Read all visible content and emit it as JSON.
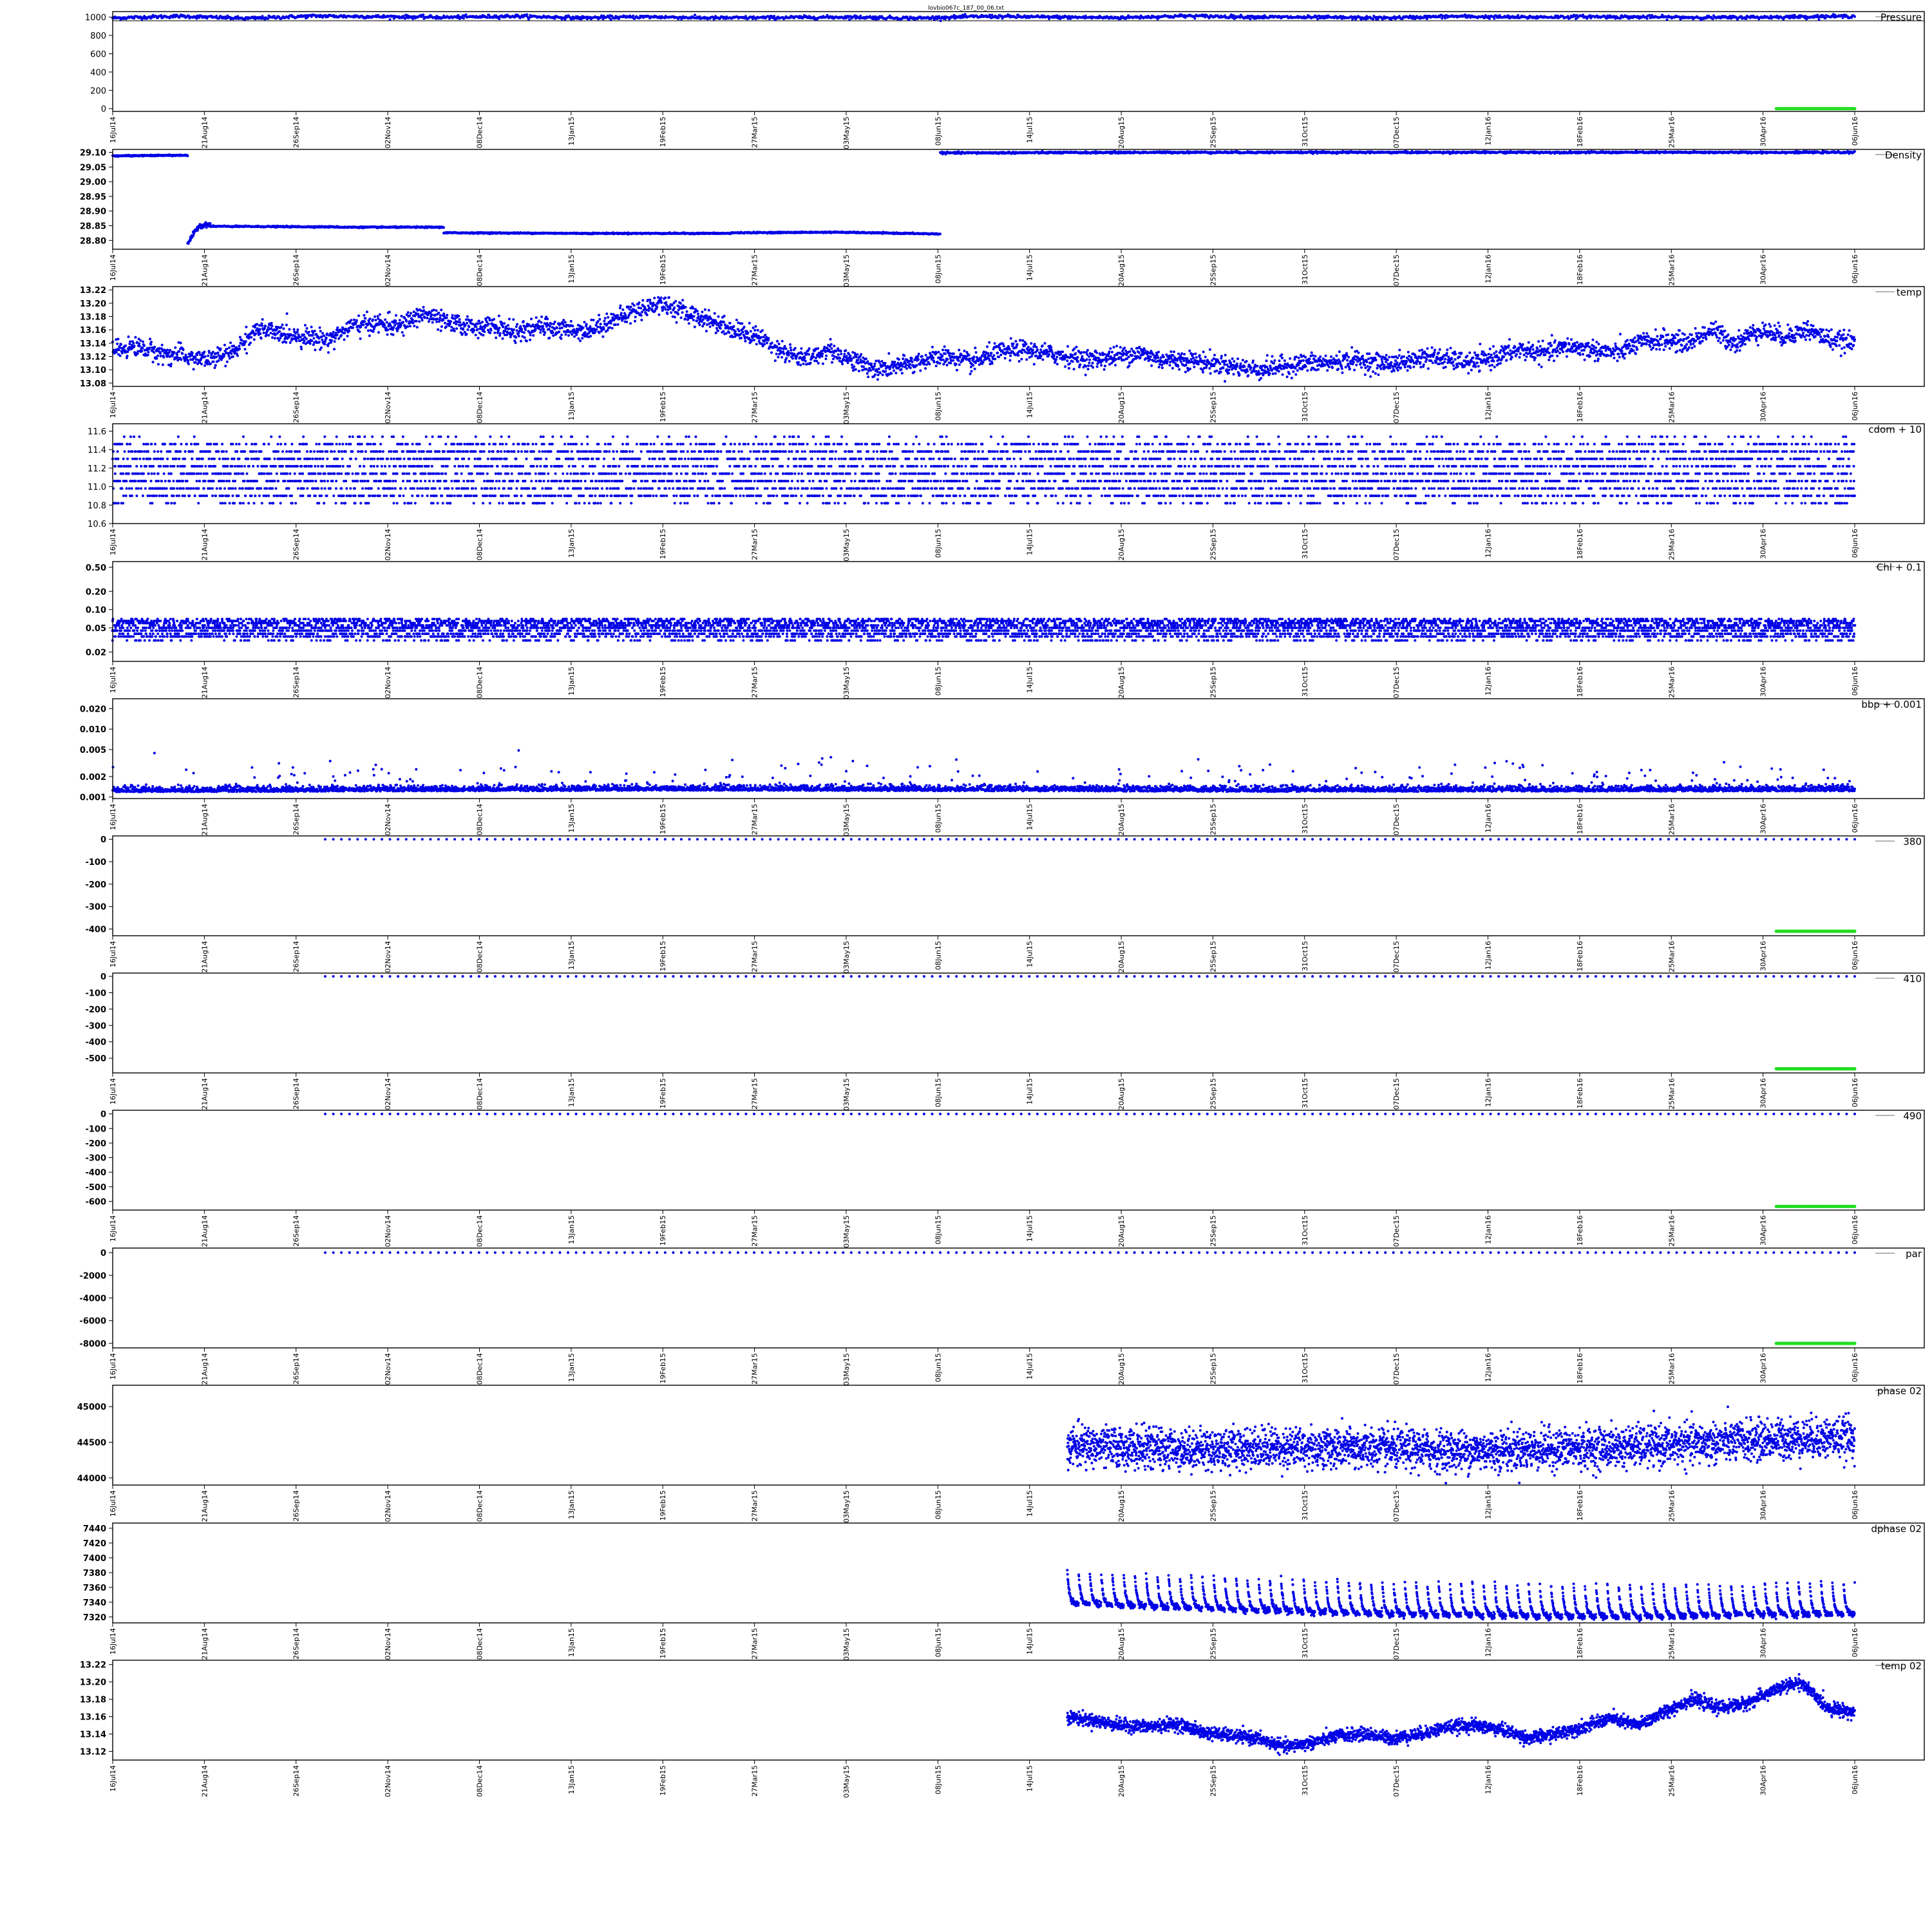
{
  "title": "lovbio067c_187_00_06.txt",
  "colors": {
    "points": "#0000e6",
    "flagged": "#22dd22",
    "frame": "#000000",
    "legend_line": "#888888"
  },
  "chart_data": [
    {
      "type": "scatter",
      "label": "Pressure",
      "ylim": [
        -30,
        1060
      ],
      "yticks": [
        1000,
        800,
        600,
        400,
        200,
        0
      ],
      "tick_labels": [
        "1000",
        "800",
        "600",
        "400",
        "200",
        "0"
      ],
      "ref_line": 960,
      "series": [
        {
          "role": "main",
          "start": 0,
          "end": 1.0,
          "values": [
            990,
            1010,
            985,
            1012,
            1005,
            998,
            1010,
            992,
            1003,
            990,
            995,
            1000,
            988,
            1008,
            1000,
            994,
            1012,
            1002,
            996,
            990,
            1008,
            998,
            1005,
            1000,
            995,
            1002,
            1010
          ],
          "noise": 15,
          "n": 2200,
          "shape": "band"
        },
        {
          "role": "flag",
          "start": 0.955,
          "end": 1.0,
          "values": [
            0,
            0
          ],
          "noise": 0,
          "n": 80,
          "shape": "line"
        }
      ]
    },
    {
      "type": "scatter",
      "label": "Density",
      "ylim": [
        28.77,
        29.11
      ],
      "yticks": [
        29.1,
        29.05,
        29.0,
        28.95,
        28.9,
        28.85,
        28.8
      ],
      "tick_labels": [
        "29.10",
        "29.05",
        "29.00",
        "28.95",
        "28.90",
        "28.85",
        "28.80"
      ],
      "series": [
        {
          "role": "main",
          "start": 0.0,
          "end": 0.043,
          "values": [
            29.088,
            29.09
          ],
          "noise": 0.001,
          "n": 220,
          "shape": "line"
        },
        {
          "role": "main",
          "start": 0.043,
          "end": 0.056,
          "values": [
            28.79,
            28.85,
            28.855
          ],
          "noise": 0.006,
          "n": 80,
          "shape": "band"
        },
        {
          "role": "main",
          "start": 0.056,
          "end": 0.13,
          "values": [
            28.848,
            28.846
          ],
          "noise": 0.001,
          "n": 320,
          "shape": "line"
        },
        {
          "role": "main",
          "start": 0.13,
          "end": 0.19,
          "values": [
            28.845,
            28.845
          ],
          "noise": 0.001,
          "n": 260,
          "shape": "line"
        },
        {
          "role": "main",
          "start": 0.19,
          "end": 0.355,
          "values": [
            28.826,
            28.824,
            28.824
          ],
          "noise": 0.001,
          "n": 700,
          "shape": "line"
        },
        {
          "role": "main",
          "start": 0.355,
          "end": 0.475,
          "values": [
            28.826,
            28.828,
            28.822
          ],
          "noise": 0.001,
          "n": 500,
          "shape": "line"
        },
        {
          "role": "main",
          "start": 0.475,
          "end": 1.0,
          "values": [
            29.098,
            29.1,
            29.1,
            29.1,
            29.1
          ],
          "noise": 0.0015,
          "n": 1800,
          "shape": "line"
        }
      ]
    },
    {
      "type": "scatter",
      "label": "temp",
      "ylim": [
        13.075,
        13.225
      ],
      "yticks": [
        13.22,
        13.2,
        13.18,
        13.16,
        13.14,
        13.12,
        13.1,
        13.08
      ],
      "tick_labels": [
        "13.22",
        "13.20",
        "13.18",
        "13.16",
        "13.14",
        "13.12",
        "13.10",
        "13.08"
      ],
      "series": [
        {
          "role": "main",
          "start": 0,
          "end": 1.0,
          "values": [
            13.13,
            13.135,
            13.125,
            13.12,
            13.115,
            13.125,
            13.16,
            13.155,
            13.15,
            13.145,
            13.165,
            13.17,
            13.165,
            13.185,
            13.17,
            13.165,
            13.165,
            13.155,
            13.165,
            13.16,
            13.16,
            13.175,
            13.19,
            13.2,
            13.185,
            13.175,
            13.16,
            13.15,
            13.13,
            13.115,
            13.13,
            13.115,
            13.1,
            13.105,
            13.115,
            13.12,
            13.11,
            13.125,
            13.13,
            13.125,
            13.12,
            13.115,
            13.12,
            13.125,
            13.115,
            13.115,
            13.11,
            13.105,
            13.1,
            13.105,
            13.11,
            13.11,
            13.115,
            13.11,
            13.11,
            13.12,
            13.115,
            13.11,
            13.12,
            13.13,
            13.125,
            13.135,
            13.13,
            13.125,
            13.14,
            13.145,
            13.14,
            13.16,
            13.14,
            13.16,
            13.15,
            13.16,
            13.145,
            13.14
          ],
          "noise": 0.012,
          "n": 4200,
          "shape": "band"
        }
      ]
    },
    {
      "type": "scatter",
      "label": "cdom + 10",
      "ylim": [
        10.6,
        11.68
      ],
      "yticks": [
        11.6,
        11.4,
        11.2,
        11.0,
        10.8,
        10.6
      ],
      "tick_labels": [
        "11.6",
        "11.4",
        "11.2",
        "11.0",
        "10.8",
        "10.6"
      ],
      "series": [
        {
          "role": "main",
          "start": 0,
          "end": 1.0,
          "levels": [
            10.82,
            10.9,
            10.98,
            11.06,
            11.14,
            11.22,
            11.3,
            11.38,
            11.46,
            11.54
          ],
          "weights": [
            0.3,
            1,
            1,
            1,
            1,
            1,
            1,
            1,
            0.7,
            0.15
          ],
          "n": 7000,
          "shape": "levels"
        }
      ]
    },
    {
      "type": "scatter",
      "label": "Chl + 0.1",
      "ylim": [
        0.014,
        0.62
      ],
      "log": true,
      "yticks": [
        0.5,
        0.2,
        0.1,
        0.05,
        0.02
      ],
      "tick_labels": [
        "0.50",
        "0.20",
        "0.10",
        "0.05",
        "0.02"
      ],
      "series": [
        {
          "role": "main",
          "start": 0,
          "end": 1.0,
          "levels": [
            0.031,
            0.036,
            0.04,
            0.045,
            0.05,
            0.055,
            0.06,
            0.065,
            0.07
          ],
          "weights": [
            0.4,
            1,
            1,
            1,
            1,
            1,
            1,
            1,
            0.6
          ],
          "n": 7000,
          "shape": "levels"
        }
      ]
    },
    {
      "type": "scatter",
      "label": "bbp + 0.001",
      "ylim": [
        0.00095,
        0.028
      ],
      "log": true,
      "yticks": [
        0.02,
        0.01,
        0.005,
        0.002,
        0.001
      ],
      "tick_labels": [
        "0.020",
        "0.010",
        "0.005",
        "0.002",
        "0.001"
      ],
      "series": [
        {
          "role": "main",
          "start": 0,
          "end": 1.0,
          "values": [
            0.00118,
            0.00125,
            0.0012,
            0.00122
          ],
          "noise": 0.00012,
          "n": 5000,
          "shape": "skew"
        }
      ]
    },
    {
      "type": "scatter",
      "label": "380",
      "ylim": [
        -430,
        15
      ],
      "yticks": [
        0,
        -100,
        -200,
        -300,
        -400
      ],
      "tick_labels": [
        "0",
        "-100",
        "-200",
        "-300",
        "-400"
      ],
      "series": [
        {
          "role": "main",
          "start": 0.122,
          "end": 1.0,
          "values": [
            0,
            0
          ],
          "noise": 0,
          "n": 190,
          "shape": "line"
        },
        {
          "role": "flag",
          "start": 0.955,
          "end": 1.0,
          "values": [
            -410,
            -410
          ],
          "noise": 0,
          "n": 80,
          "shape": "line"
        }
      ]
    },
    {
      "type": "scatter",
      "label": "410",
      "ylim": [
        -590,
        20
      ],
      "yticks": [
        0,
        -100,
        -200,
        -300,
        -400,
        -500
      ],
      "tick_labels": [
        "0",
        "-100",
        "-200",
        "-300",
        "-400",
        "-500"
      ],
      "series": [
        {
          "role": "main",
          "start": 0.122,
          "end": 1.0,
          "values": [
            0,
            0
          ],
          "noise": 0,
          "n": 190,
          "shape": "line"
        },
        {
          "role": "flag",
          "start": 0.955,
          "end": 1.0,
          "values": [
            -565,
            -565
          ],
          "noise": 0,
          "n": 80,
          "shape": "line"
        }
      ]
    },
    {
      "type": "scatter",
      "label": "490",
      "ylim": [
        -660,
        25
      ],
      "yticks": [
        0,
        -100,
        -200,
        -300,
        -400,
        -500,
        -600
      ],
      "tick_labels": [
        "0",
        "-100",
        "-200",
        "-300",
        "-400",
        "-500",
        "-600"
      ],
      "series": [
        {
          "role": "main",
          "start": 0.122,
          "end": 1.0,
          "values": [
            0,
            0
          ],
          "noise": 0,
          "n": 190,
          "shape": "line"
        },
        {
          "role": "flag",
          "start": 0.955,
          "end": 1.0,
          "values": [
            -635,
            -635
          ],
          "noise": 0,
          "n": 80,
          "shape": "line"
        }
      ]
    },
    {
      "type": "scatter",
      "label": "par",
      "ylim": [
        -8400,
        400
      ],
      "yticks": [
        0,
        -2000,
        -4000,
        -6000,
        -8000
      ],
      "tick_labels": [
        "0",
        "-2000",
        "-4000",
        "-6000",
        "-8000"
      ],
      "series": [
        {
          "role": "main",
          "start": 0.122,
          "end": 1.0,
          "values": [
            0,
            0
          ],
          "noise": 0,
          "n": 190,
          "shape": "line"
        },
        {
          "role": "flag",
          "start": 0.955,
          "end": 1.0,
          "values": [
            -8000,
            -8000
          ],
          "noise": 0,
          "n": 80,
          "shape": "line"
        }
      ]
    },
    {
      "type": "scatter",
      "label": "phase 02",
      "ylim": [
        43900,
        45300
      ],
      "yticks": [
        45000,
        44500,
        44000
      ],
      "tick_labels": [
        "45000",
        "44500",
        "44000"
      ],
      "series": [
        {
          "role": "main",
          "start": 0.548,
          "end": 1.0,
          "values": [
            44450,
            44420,
            44400,
            44430,
            44420,
            44400,
            44380,
            44400,
            44420,
            44450,
            44500,
            44550,
            44570
          ],
          "noise": 230,
          "n": 3600,
          "shape": "band"
        }
      ]
    },
    {
      "type": "scatter",
      "label": "dphase 02",
      "ylim": [
        7312,
        7447
      ],
      "yticks": [
        7440,
        7420,
        7400,
        7380,
        7360,
        7340,
        7320
      ],
      "tick_labels": [
        "7440",
        "7420",
        "7400",
        "7380",
        "7360",
        "7340",
        "7320"
      ],
      "series": [
        {
          "role": "main",
          "start": 0.548,
          "end": 1.0,
          "values": [
            7338,
            7333,
            7328,
            7324,
            7322,
            7320,
            7320,
            7322,
            7324
          ],
          "noise": 0,
          "n": 3600,
          "shape": "sawtooth",
          "amp": 45
        }
      ]
    },
    {
      "type": "scatter",
      "label": "temp 02",
      "ylim": [
        13.11,
        13.225
      ],
      "yticks": [
        13.22,
        13.2,
        13.18,
        13.16,
        13.14,
        13.12
      ],
      "tick_labels": [
        "13.22",
        "13.20",
        "13.18",
        "13.16",
        "13.14",
        "13.12"
      ],
      "series": [
        {
          "role": "main",
          "start": 0.548,
          "end": 1.0,
          "values": [
            13.16,
            13.155,
            13.15,
            13.148,
            13.152,
            13.142,
            13.138,
            13.135,
            13.125,
            13.13,
            13.138,
            13.14,
            13.135,
            13.14,
            13.148,
            13.15,
            13.145,
            13.135,
            13.14,
            13.148,
            13.158,
            13.15,
            13.165,
            13.18,
            13.17,
            13.175,
            13.19,
            13.2,
            13.17,
            13.165
          ],
          "noise": 0.006,
          "n": 3200,
          "shape": "band"
        }
      ]
    }
  ],
  "x_ticks": [
    "16Jul14",
    "21Aug14",
    "26Sep14",
    "02Nov14",
    "08Dec14",
    "13Jan15",
    "19Feb15",
    "27Mar15",
    "03May15",
    "08Jun15",
    "14Jul15",
    "20Aug15",
    "25Sep15",
    "31Oct15",
    "07Dec15",
    "12Jan16",
    "18Feb16",
    "25Mar16",
    "30Apr16",
    "06Jun16"
  ]
}
